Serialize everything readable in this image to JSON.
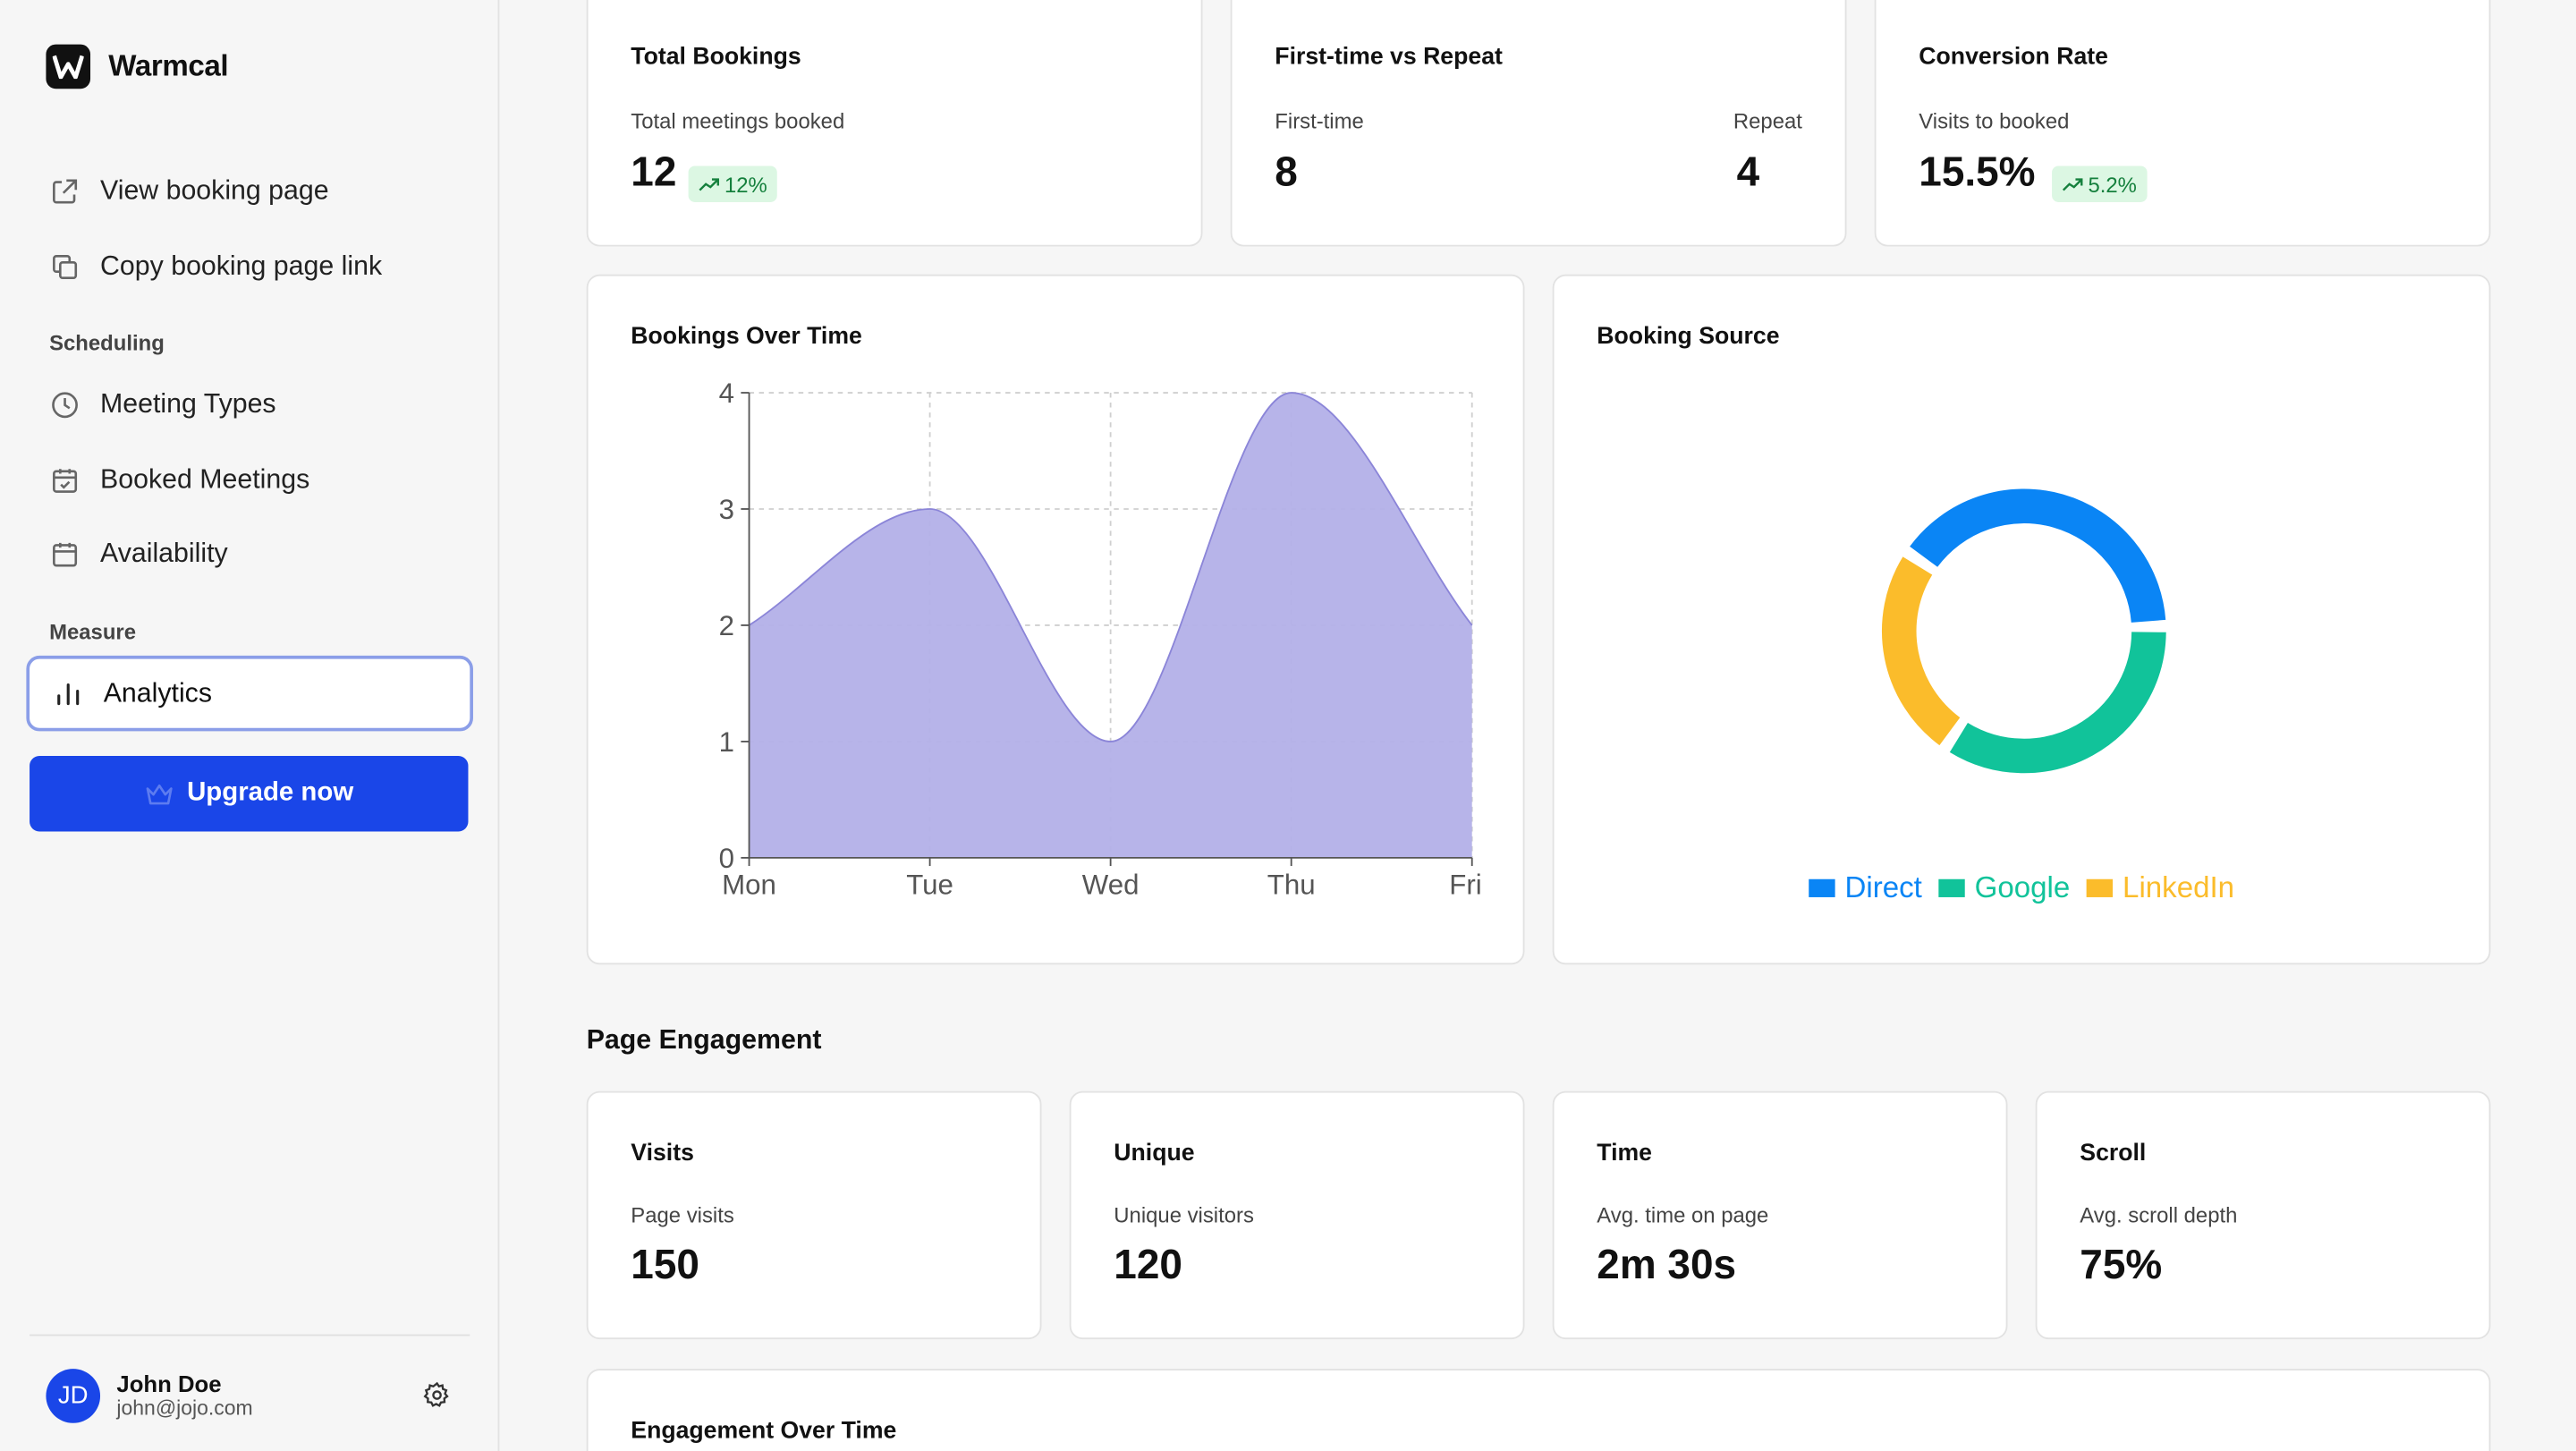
{
  "app": {
    "name": "Warmcal"
  },
  "sidebar": {
    "top_items": [
      {
        "label": "View booking page",
        "icon": "external-link-icon"
      },
      {
        "label": "Copy booking page link",
        "icon": "copy-icon"
      }
    ],
    "sections": [
      {
        "title": "Scheduling",
        "items": [
          {
            "label": "Meeting Types",
            "icon": "clock-icon"
          },
          {
            "label": "Booked Meetings",
            "icon": "calendar-check-icon"
          },
          {
            "label": "Availability",
            "icon": "calendar-icon"
          }
        ]
      },
      {
        "title": "Measure",
        "items": [
          {
            "label": "Analytics",
            "icon": "bar-chart-icon",
            "active": true
          }
        ]
      }
    ],
    "upgrade_label": "Upgrade now",
    "user": {
      "initials": "JD",
      "name": "John Doe",
      "email": "john@jojo.com"
    }
  },
  "stats": {
    "total_bookings": {
      "title": "Total Bookings",
      "sub": "Total meetings booked",
      "value": "12",
      "change": "12%"
    },
    "first_repeat": {
      "title": "First-time vs Repeat",
      "first_label": "First-time",
      "first_value": "8",
      "repeat_label": "Repeat",
      "repeat_value": "4"
    },
    "conversion": {
      "title": "Conversion Rate",
      "sub": "Visits to booked",
      "value": "15.5%",
      "change": "5.2%"
    }
  },
  "bookings_chart": {
    "title": "Bookings Over Time"
  },
  "source_chart": {
    "title": "Booking Source"
  },
  "engagement": {
    "section_title": "Page Engagement",
    "cards": [
      {
        "title": "Visits",
        "sub": "Page visits",
        "value": "150"
      },
      {
        "title": "Unique",
        "sub": "Unique visitors",
        "value": "120"
      },
      {
        "title": "Time",
        "sub": "Avg. time on page",
        "value": "2m 30s"
      },
      {
        "title": "Scroll",
        "sub": "Avg. scroll depth",
        "value": "75%"
      }
    ],
    "over_time_title": "Engagement Over Time"
  },
  "colors": {
    "accent": "#1a46e8",
    "area_fill": "#b3b0e8",
    "area_stroke": "#8b85d8",
    "direct": "#0a85f5",
    "google": "#11c39a",
    "linkedin": "#fbbc2b"
  },
  "chart_data": [
    {
      "type": "area",
      "categories": [
        "Mon",
        "Tue",
        "Wed",
        "Thu",
        "Fri"
      ],
      "values": [
        2,
        3,
        1,
        4,
        2
      ],
      "ylim": [
        0,
        4
      ],
      "yticks": [
        0,
        1,
        2,
        3,
        4
      ],
      "grid": true
    },
    {
      "type": "pie",
      "labels": [
        "Direct",
        "Google",
        "LinkedIn"
      ],
      "values": [
        40,
        35,
        25
      ],
      "legend": "bottom"
    }
  ]
}
